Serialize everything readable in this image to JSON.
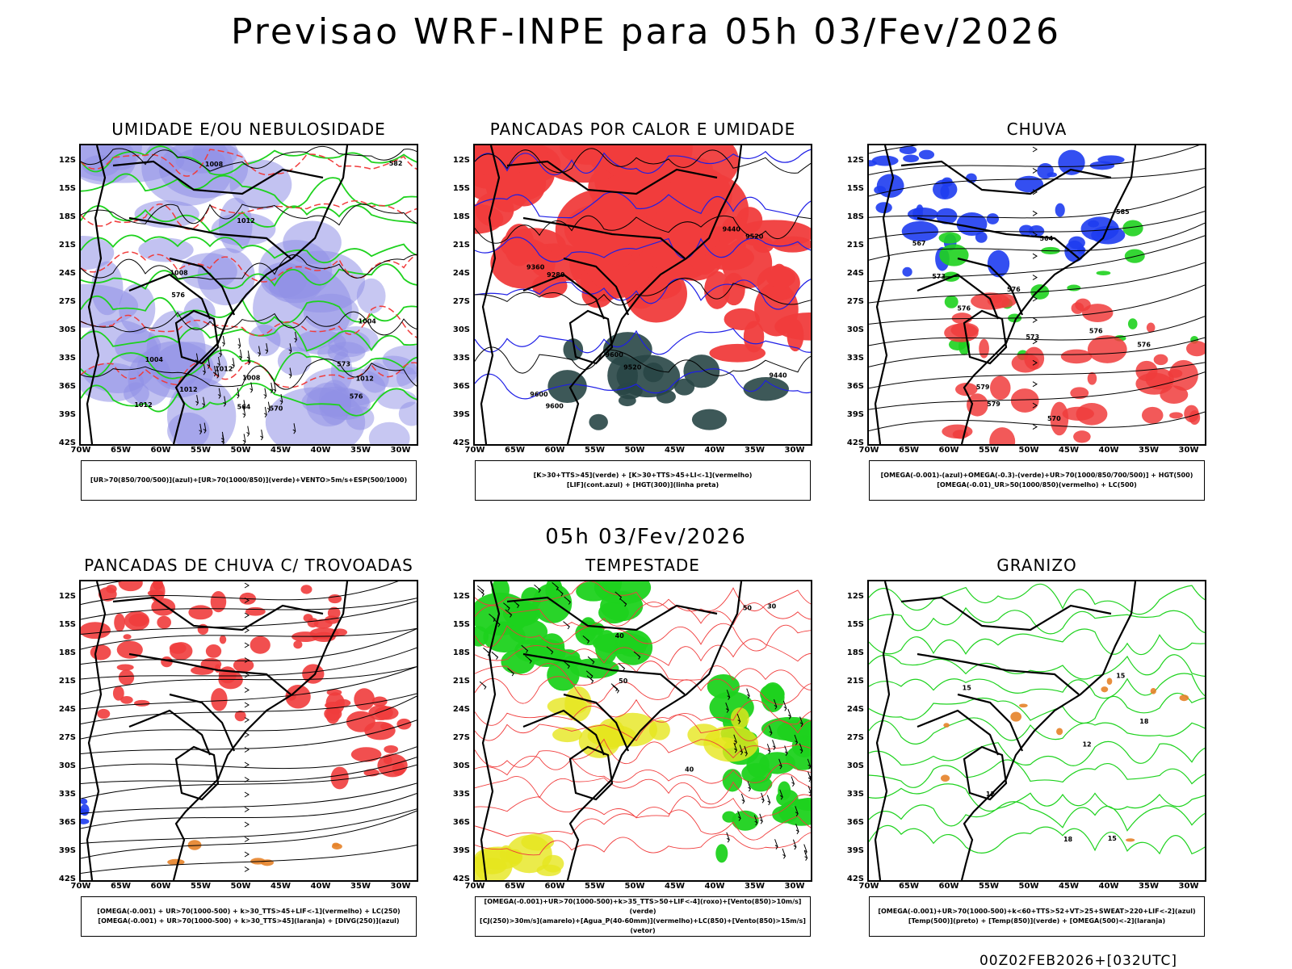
{
  "title": "Previsao WRF-INPE  para 05h 03/Fev/2026",
  "mid_date": "05h 03/Fev/2026",
  "footer_id": "00Z02FEB2026+[032UTC]",
  "lat_ticks": [
    "12S",
    "15S",
    "18S",
    "21S",
    "24S",
    "27S",
    "30S",
    "33S",
    "36S",
    "39S",
    "42S"
  ],
  "lon_ticks": [
    "70W",
    "65W",
    "60W",
    "55W",
    "50W",
    "45W",
    "40W",
    "35W",
    "30W"
  ],
  "colors": {
    "blue": "#8f8fe6",
    "red": "#f03c3c",
    "green": "#1ed21e",
    "yellow": "#e6e61e",
    "orange": "#e68228",
    "darkgreen": "#284646",
    "black": "#000000"
  },
  "panels": [
    {
      "id": "umidade",
      "title": "UMIDADE E/OU NEBULOSIDADE",
      "legend": [
        "[UR>70(850/700/500)](azul)+[UR>70(1000/850)](verde)+VENTO>5m/s+ESP(500/1000)"
      ],
      "contour_labels": [
        "1012",
        "1012",
        "1012",
        "1012",
        "1008",
        "1004",
        "1004",
        "1008",
        "1012",
        "1008",
        "570",
        "576",
        "573",
        "576",
        "582",
        "564"
      ]
    },
    {
      "id": "pancadas_calor",
      "title": "PANCADAS POR CALOR E UMIDADE",
      "legend": [
        "[K>30+TTS>45](verde) + [K>30+TTS>45+LI<-1](vermelho)",
        "[LIF](cont.azul) + [HGT(300)](linha preta)"
      ],
      "contour_labels": [
        "9520",
        "9600",
        "9600",
        "9520",
        "9600",
        "9440",
        "9440",
        "9360",
        "9280"
      ]
    },
    {
      "id": "chuva",
      "title": "CHUVA",
      "legend": [
        "[OMEGA(-0.001)-(azul)+OMEGA(-0.3)-(verde)+UR>70(1000/850/700/500)] + HGT(500)",
        "[OMEGA(-0.01)_UR>50(1000/850)(vermelho) + LC(500)"
      ],
      "contour_labels": [
        "579",
        "576",
        "576",
        "576",
        "573",
        "570",
        "567",
        "564",
        "576",
        "585",
        "579",
        "573"
      ]
    },
    {
      "id": "trovoadas",
      "title": "PANCADAS DE CHUVA C/ TROVOADAS",
      "legend": [
        "[OMEGA(-0.001) + UR>70(1000-500) + k>30_TTS>45+LIF<-1](vermelho) + LC(250)",
        "[OMEGA(-0.001) + UR>70(1000-500) + k>30_TTS>45](laranja) + [DIVG(250)](azul)"
      ],
      "contour_labels": []
    },
    {
      "id": "tempestade",
      "title": "TEMPESTADE",
      "legend": [
        "[OMEGA(-0.001)+UR>70(1000-500)+k>35_TTS>50+LIF<-4](roxo)+[Vento(850)>10m/s](verde)",
        "[CJ(250)>30m/s](amarelo)+[Agua_P(40-60mm)](vermelho)+LC(850)+[Vento(850)>15m/s](vetor)"
      ],
      "contour_labels": [
        "40",
        "50",
        "50",
        "30",
        "40"
      ]
    },
    {
      "id": "granizo",
      "title": "GRANIZO",
      "legend": [
        "[OMEGA(-0.001)+UR>70(1000-500)+k<60+TTS>52+VT>25+SWEAT>220+LIF<-2](azul)",
        "[Temp(500)](preto) + [Temp(850)](verde) + [OMEGA(500)<-2](laranja)"
      ],
      "contour_labels": [
        "15",
        "18",
        "18",
        "15",
        "12",
        "12",
        "15"
      ]
    }
  ]
}
